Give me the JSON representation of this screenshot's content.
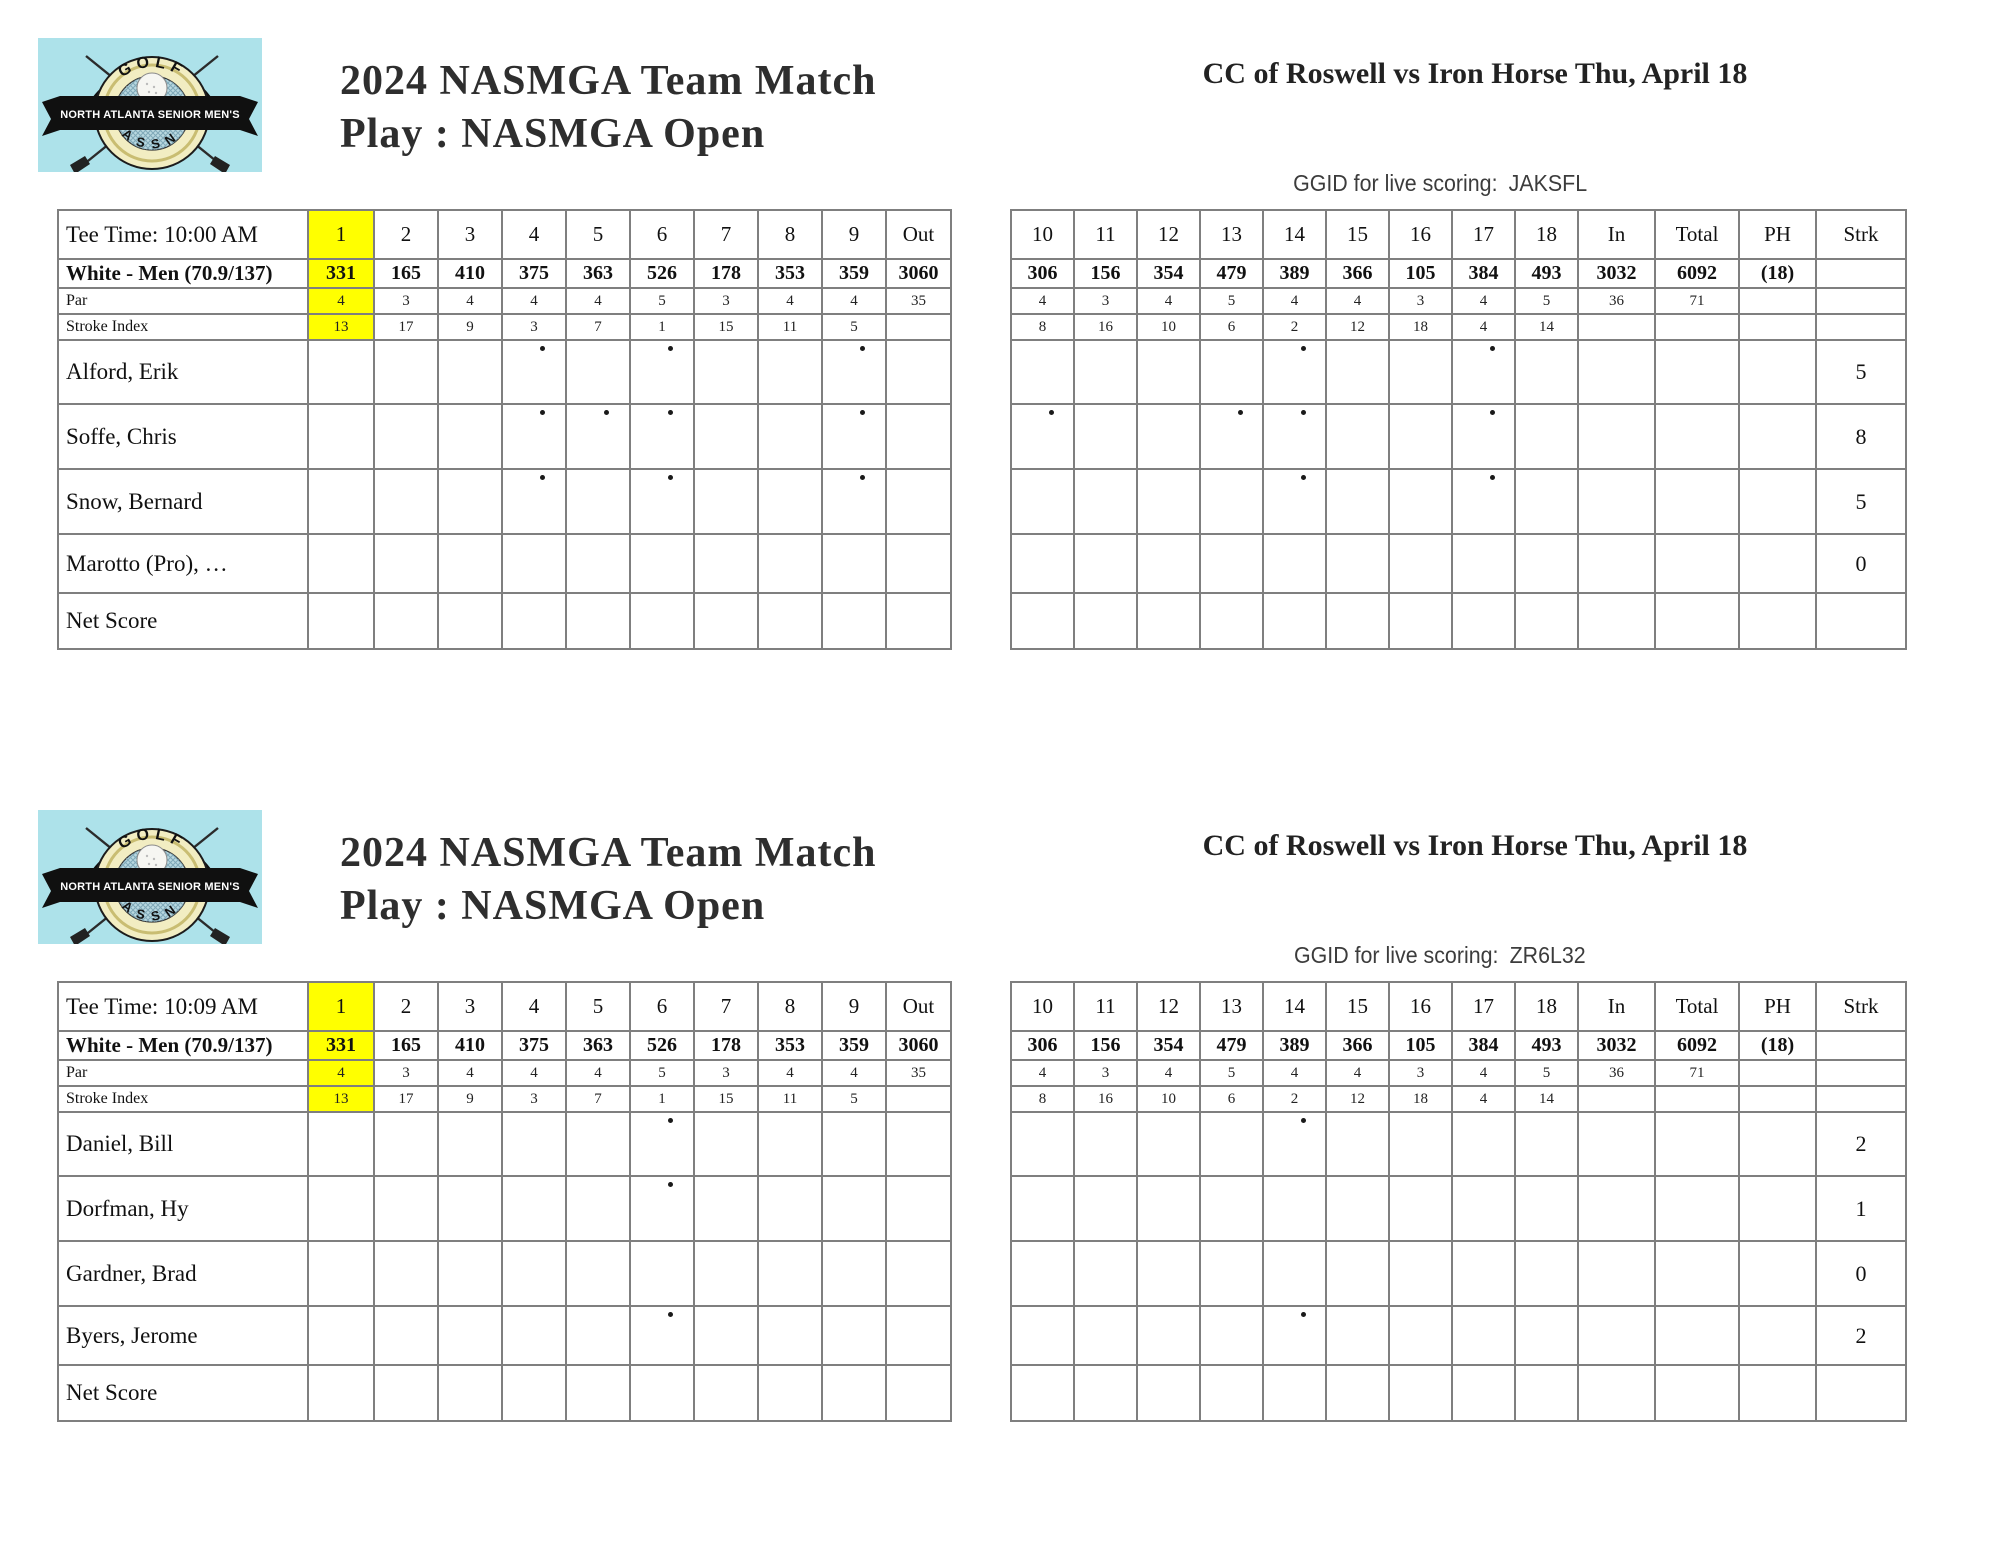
{
  "title_line1": "2024 NASMGA Team Match",
  "title_line2": "Play : NASMGA Open",
  "match_header": "CC of Roswell vs Iron Horse Thu, April 18",
  "ggid_label": "GGID for live scoring:",
  "logo": {
    "top_text": "GOLF",
    "banner_text": "NORTH ATLANTA SENIOR MEN'S",
    "bottom_text": "ASSN",
    "bg_color": "#ade2ea",
    "ring_color": "#f2edc2"
  },
  "course": {
    "tees_label": "White - Men (70.9/137)",
    "par_label": "Par",
    "stroke_index_label": "Stroke Index",
    "net_score_label": "Net Score",
    "front": {
      "holes": [
        "1",
        "2",
        "3",
        "4",
        "5",
        "6",
        "7",
        "8",
        "9"
      ],
      "out_label": "Out",
      "yards": [
        "331",
        "165",
        "410",
        "375",
        "363",
        "526",
        "178",
        "353",
        "359"
      ],
      "out_yards": "3060",
      "par": [
        "4",
        "3",
        "4",
        "4",
        "4",
        "5",
        "3",
        "4",
        "4"
      ],
      "out_par": "35",
      "stroke_index": [
        "13",
        "17",
        "9",
        "3",
        "7",
        "1",
        "15",
        "11",
        "5"
      ]
    },
    "back": {
      "holes": [
        "10",
        "11",
        "12",
        "13",
        "14",
        "15",
        "16",
        "17",
        "18"
      ],
      "extra_cols": [
        "In",
        "Total",
        "PH",
        "Strk"
      ],
      "yards": [
        "306",
        "156",
        "354",
        "479",
        "389",
        "366",
        "105",
        "384",
        "493"
      ],
      "in_yards": "3032",
      "total_yards": "6092",
      "ph": "(18)",
      "par": [
        "4",
        "3",
        "4",
        "5",
        "4",
        "4",
        "3",
        "4",
        "5"
      ],
      "in_par": "36",
      "total_par": "71",
      "stroke_index": [
        "8",
        "16",
        "10",
        "6",
        "2",
        "12",
        "18",
        "4",
        "14"
      ]
    }
  },
  "sections": [
    {
      "tee_time_label": "Tee Time: 10:00 AM",
      "ggid_code": "JAKSFL",
      "players": [
        {
          "name": "Alford, Erik",
          "front_dots": [
            4,
            6,
            9
          ],
          "back_dots": [
            14,
            17
          ],
          "strokes": "5"
        },
        {
          "name": "Soffe, Chris",
          "front_dots": [
            4,
            5,
            6,
            9
          ],
          "back_dots": [
            10,
            13,
            14,
            17
          ],
          "strokes": "8"
        },
        {
          "name": "Snow, Bernard",
          "front_dots": [
            4,
            6,
            9
          ],
          "back_dots": [
            14,
            17
          ],
          "strokes": "5"
        },
        {
          "name": "Marotto (Pro), …",
          "front_dots": [],
          "back_dots": [],
          "strokes": "0"
        }
      ]
    },
    {
      "tee_time_label": "Tee Time: 10:09 AM",
      "ggid_code": "ZR6L32",
      "players": [
        {
          "name": "Daniel, Bill",
          "front_dots": [
            6
          ],
          "back_dots": [
            14
          ],
          "strokes": "2"
        },
        {
          "name": "Dorfman, Hy",
          "front_dots": [
            6
          ],
          "back_dots": [],
          "strokes": "1"
        },
        {
          "name": "Gardner, Brad",
          "front_dots": [],
          "back_dots": [],
          "strokes": "0"
        },
        {
          "name": "Byers, Jerome",
          "front_dots": [
            6
          ],
          "back_dots": [
            14
          ],
          "strokes": "2"
        }
      ]
    }
  ],
  "colors": {
    "highlight": "#ffff00",
    "grid_line": "#7f7f7f",
    "text": "#111111"
  }
}
